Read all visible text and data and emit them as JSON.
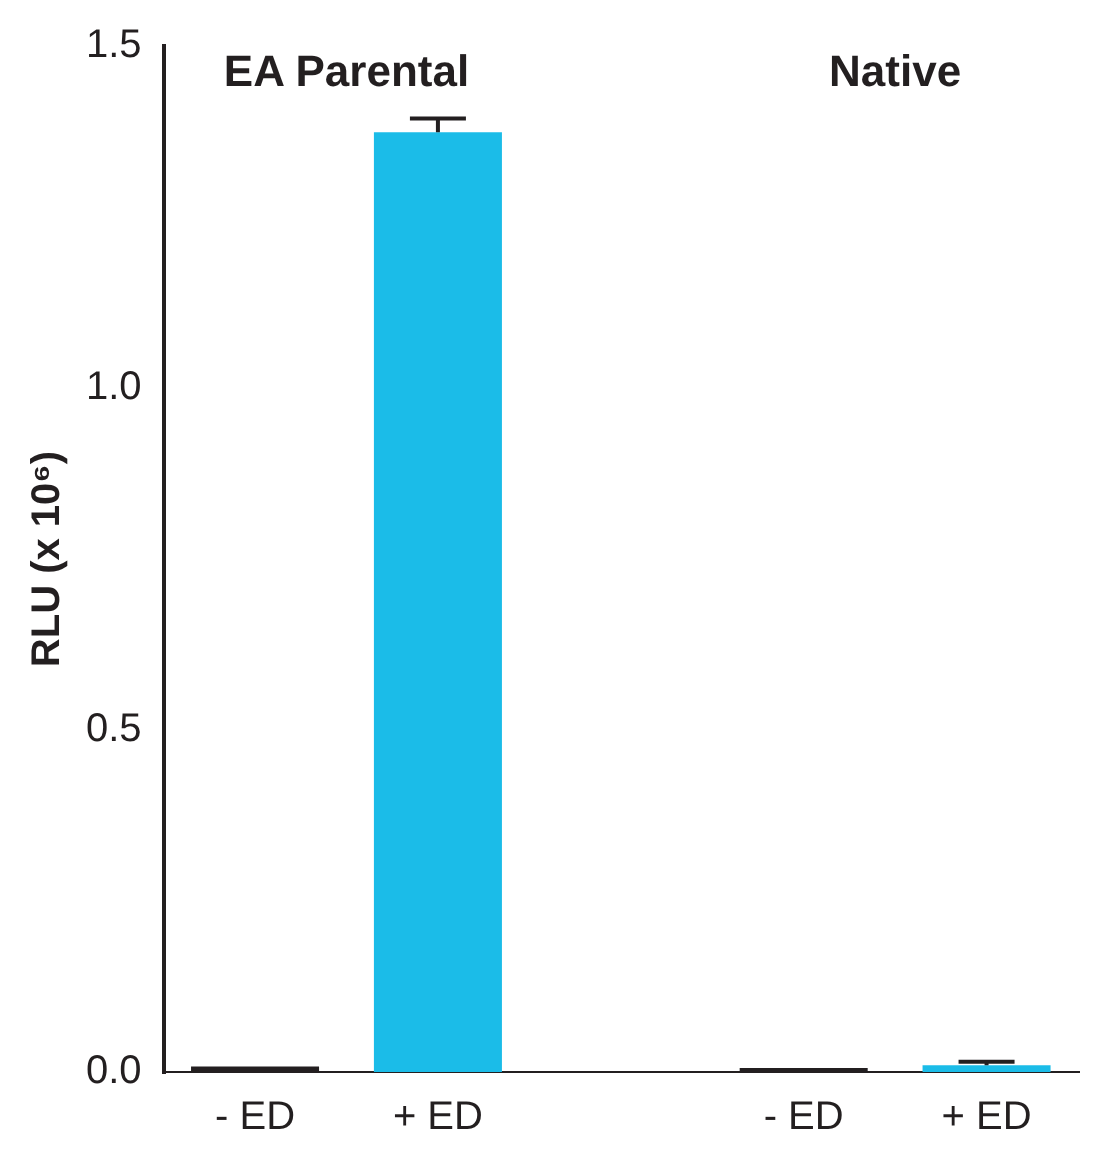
{
  "chart_data": {
    "type": "bar",
    "ylabel": "RLU (x 10⁶)",
    "categories": [
      "- ED",
      "+ ED",
      null,
      "- ED",
      "+ ED"
    ],
    "values": [
      0.008,
      1.374,
      null,
      0.006,
      0.01
    ],
    "colors": [
      "#231f20",
      "#1bbce8",
      "#231f20",
      "#231f20",
      "#1bbce8"
    ],
    "errors": [
      null,
      [
        1.374,
        1.394
      ],
      null,
      null,
      [
        0.01,
        0.015
      ]
    ],
    "ylim": [
      0,
      1.5
    ],
    "yticks": [
      {
        "value": 0,
        "label": "0.0"
      },
      {
        "value": 0.5,
        "label": "0.5"
      },
      {
        "value": 1,
        "label": "1.0"
      },
      {
        "value": 1.5,
        "label": "1.5"
      }
    ],
    "annotations": [
      "EA Parental",
      "Native"
    ],
    "grid": false,
    "legend": false
  }
}
